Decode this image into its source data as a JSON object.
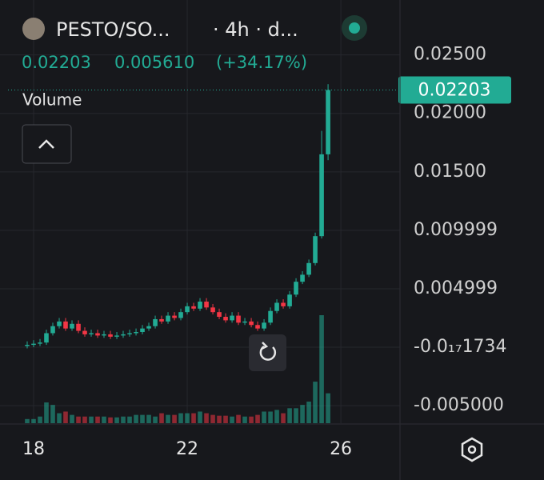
{
  "header": {
    "symbol": "PESTO/SO...",
    "interval": "· 4h · d...",
    "price": "0.02203",
    "change": "0.005610",
    "change_pct": "(+34.17%)",
    "volume_label": "Volume"
  },
  "chart_data": {
    "type": "candlestick",
    "up_color": "#22ab94",
    "down_color": "#f23645",
    "grid": true,
    "x": [
      17.833,
      18,
      18.167,
      18.333,
      18.5,
      18.667,
      18.833,
      19,
      19.167,
      19.333,
      19.5,
      19.667,
      19.833,
      20,
      20.167,
      20.333,
      20.5,
      20.667,
      20.833,
      21,
      21.167,
      21.333,
      21.5,
      21.667,
      21.833,
      22,
      22.167,
      22.333,
      22.5,
      22.667,
      22.833,
      23,
      23.167,
      23.333,
      23.5,
      23.667,
      23.833,
      24,
      24.167,
      24.333,
      24.5,
      24.667,
      24.833,
      25,
      25.167,
      25.333,
      25.5,
      25.667
    ],
    "open": [
      0.0001,
      0.0002,
      0.0003,
      0.0004,
      0.0012,
      0.0018,
      0.0022,
      0.0016,
      0.002,
      0.0014,
      0.0011,
      0.0012,
      0.001,
      0.0011,
      0.0009,
      0.001,
      0.0011,
      0.0012,
      0.0013,
      0.0016,
      0.0018,
      0.0024,
      0.0022,
      0.0027,
      0.0025,
      0.003,
      0.0035,
      0.0033,
      0.0039,
      0.0034,
      0.003,
      0.0026,
      0.0023,
      0.0027,
      0.0021,
      0.0022,
      0.0019,
      0.0016,
      0.0021,
      0.0031,
      0.0038,
      0.0035,
      0.0045,
      0.0056,
      0.0062,
      0.0072,
      0.0095,
      0.0165
    ],
    "high": [
      0.0005,
      0.0006,
      0.0007,
      0.0015,
      0.0021,
      0.0025,
      0.0025,
      0.0023,
      0.0023,
      0.0017,
      0.0015,
      0.0015,
      0.0014,
      0.0014,
      0.0013,
      0.0014,
      0.0015,
      0.0016,
      0.0019,
      0.0021,
      0.0027,
      0.0027,
      0.003,
      0.003,
      0.0033,
      0.0038,
      0.0038,
      0.0042,
      0.0042,
      0.0037,
      0.0033,
      0.0029,
      0.003,
      0.003,
      0.0025,
      0.0025,
      0.0022,
      0.0024,
      0.0034,
      0.0041,
      0.0041,
      0.0048,
      0.0059,
      0.0065,
      0.0075,
      0.0098,
      0.0185,
      0.0225
    ],
    "low": [
      -0.0001,
      0.0,
      0.0001,
      0.0002,
      0.001,
      0.0016,
      0.0014,
      0.0014,
      0.0012,
      0.0009,
      0.0009,
      0.0008,
      0.0008,
      0.0007,
      0.0007,
      0.0008,
      0.0009,
      0.001,
      0.0011,
      0.0014,
      0.0016,
      0.002,
      0.002,
      0.0023,
      0.0023,
      0.0028,
      0.0031,
      0.0031,
      0.0032,
      0.0028,
      0.0024,
      0.0021,
      0.0021,
      0.0019,
      0.0019,
      0.0017,
      0.0014,
      0.0014,
      0.0019,
      0.0029,
      0.0033,
      0.0033,
      0.0043,
      0.0054,
      0.006,
      0.007,
      0.0093,
      0.016
    ],
    "close": [
      0.0002,
      0.0003,
      0.0004,
      0.0012,
      0.0018,
      0.0022,
      0.0016,
      0.002,
      0.0014,
      0.0011,
      0.0012,
      0.001,
      0.0011,
      0.0009,
      0.001,
      0.0011,
      0.0012,
      0.0013,
      0.0016,
      0.0018,
      0.0024,
      0.0022,
      0.0027,
      0.0025,
      0.003,
      0.0035,
      0.0033,
      0.0039,
      0.0034,
      0.003,
      0.0026,
      0.0023,
      0.0027,
      0.0021,
      0.0022,
      0.0019,
      0.0016,
      0.0021,
      0.0031,
      0.0038,
      0.0035,
      0.0045,
      0.0056,
      0.0062,
      0.0072,
      0.0095,
      0.0165,
      0.022
    ],
    "volume": [
      5,
      5,
      8,
      25,
      22,
      12,
      14,
      10,
      8,
      8,
      8,
      8,
      8,
      7,
      7,
      8,
      8,
      10,
      10,
      10,
      8,
      12,
      10,
      10,
      12,
      12,
      12,
      14,
      12,
      10,
      9,
      9,
      8,
      10,
      8,
      8,
      10,
      14,
      14,
      16,
      12,
      18,
      18,
      22,
      26,
      50,
      130,
      36
    ],
    "xlim": [
      17.125,
      27.54
    ],
    "xticks": [
      18,
      22,
      26
    ],
    "ylim": [
      -0.0065,
      0.0297
    ],
    "yticks": [
      {
        "value": -0.005,
        "label": "-0.005000"
      },
      {
        "value": -1.734e-19,
        "label": "-0.0₁₇1734"
      },
      {
        "value": 0.004999,
        "label": "0.004999"
      },
      {
        "value": 0.009999,
        "label": "0.009999"
      },
      {
        "value": 0.015,
        "label": "0.01500"
      },
      {
        "value": 0.02,
        "label": "0.02000"
      },
      {
        "value": 0.025,
        "label": "0.02500"
      }
    ]
  }
}
